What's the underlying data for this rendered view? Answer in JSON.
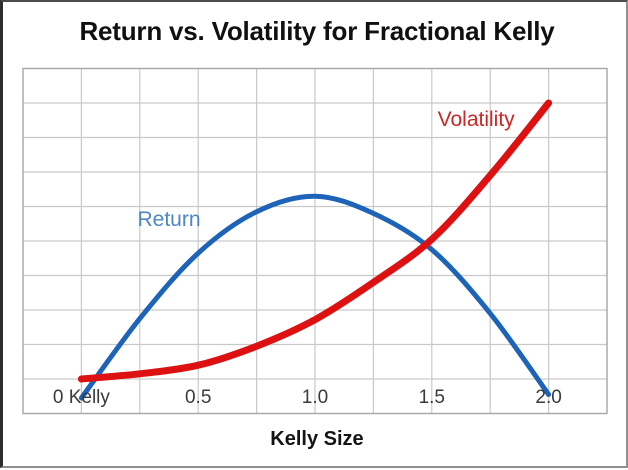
{
  "chart_data": {
    "type": "line",
    "title": "Return vs. Volatility for Fractional Kelly",
    "xlabel": "Kelly Size",
    "ylabel": "",
    "x_tick_labels": [
      "0 Kelly",
      "0.5",
      "1.0",
      "1.5",
      "2.0"
    ],
    "x_ticks_kelly": [
      0,
      0.5,
      1.0,
      1.5,
      2.0
    ],
    "x": [
      0,
      0.25,
      0.5,
      0.75,
      1.0,
      1.25,
      1.5,
      1.75,
      2.0
    ],
    "xlim": [
      -0.25,
      2.25
    ],
    "ylim": [
      0,
      10
    ],
    "grid": true,
    "y_axis_note": "no y-axis tick labels are shown; series values estimated in gridline units (0 = bottom border, 10 = top border)",
    "legend": "in-plot text labels next to each curve",
    "series": [
      {
        "name": "Return",
        "color": "#1d64b8",
        "label_color": "#4e86c4",
        "stroke_width": 5,
        "values": [
          0.45,
          2.75,
          4.65,
          5.85,
          6.3,
          5.8,
          4.75,
          2.9,
          0.55
        ],
        "label_pos": {
          "x": 0.375,
          "y": 5.6
        }
      },
      {
        "name": "Volatility",
        "color": "#dd1111",
        "label_color": "#cc2626",
        "stroke_width": 7,
        "values": [
          1.0,
          1.15,
          1.4,
          1.95,
          2.72,
          3.8,
          5.05,
          6.9,
          9.0
        ],
        "label_pos": {
          "x": 1.69,
          "y": 8.5
        }
      }
    ]
  },
  "colors": {
    "grid": "#c9c9c9",
    "plot_border": "#a6a6a6",
    "tick_label": "#3a3a3a",
    "title": "#101010",
    "background": "#ffffff"
  }
}
